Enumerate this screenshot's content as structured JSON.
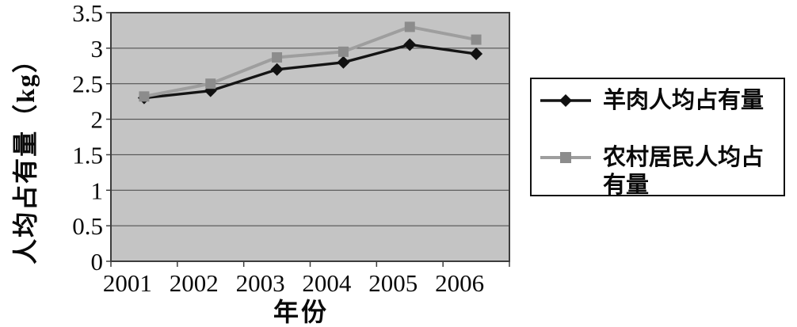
{
  "page": {
    "background": "#ffffff"
  },
  "chart_data": {
    "type": "line",
    "title": "",
    "xlabel": "年份",
    "ylabel": "人均占有量（kg）",
    "categories": [
      "2001",
      "2002",
      "2003",
      "2004",
      "2005",
      "2006"
    ],
    "series": [
      {
        "name": "羊肉人均占有量",
        "marker": "diamond",
        "line_color": "#141414",
        "marker_color": "#111111",
        "values": [
          2.3,
          2.4,
          2.7,
          2.8,
          3.05,
          2.92
        ]
      },
      {
        "name": "农村居民人均占有量",
        "marker": "square",
        "line_color": "#9e9e9e",
        "marker_color": "#8c8c8c",
        "values": [
          2.32,
          2.5,
          2.87,
          2.95,
          3.3,
          3.12
        ]
      }
    ],
    "ylim": [
      0,
      3.5
    ],
    "ytick_step": 0.5,
    "yticks": [
      "0",
      "0.5",
      "1",
      "1.5",
      "2",
      "2.5",
      "3",
      "3.5"
    ],
    "grid": true,
    "legend_position": "right",
    "plot_background": "#c4c4c4",
    "gridline_color": "#454545",
    "border_color": "#3d3d3d"
  },
  "legend": {
    "items": [
      {
        "label": "羊肉人均占有量",
        "marker": "diamond"
      },
      {
        "label": "农村居民人均占\n有量",
        "marker": "square"
      }
    ]
  }
}
